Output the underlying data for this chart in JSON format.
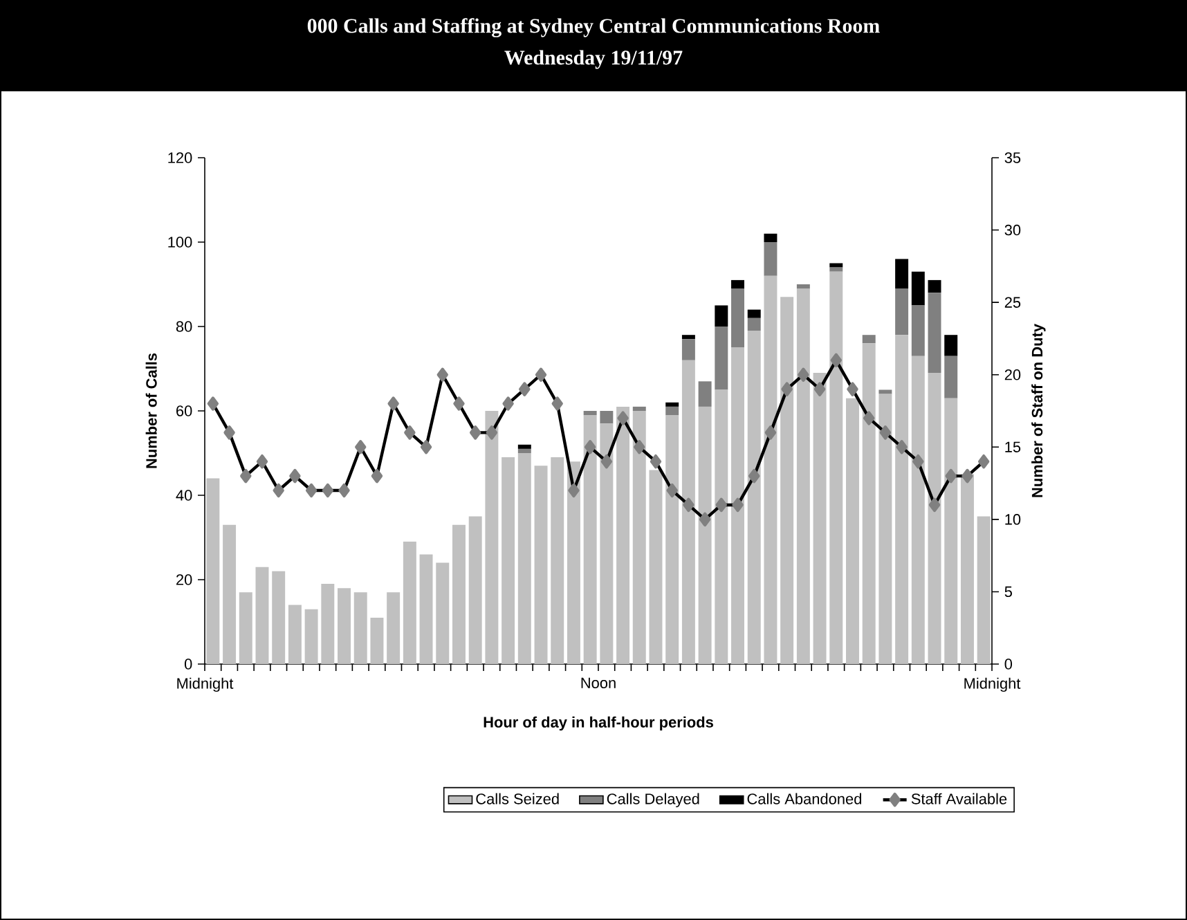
{
  "chart_data": {
    "type": "bar",
    "title": "000 Calls and Staffing at Sydney Central Communications Room",
    "subtitle": "Wednesday 19/11/97",
    "xlabel": "Hour of day in half-hour periods",
    "ylabel": "Number of Calls",
    "y2label": "Number of Staff on Duty",
    "stacked": true,
    "legend": "bottom",
    "marker": "diamond",
    "categories": [
      null,
      null,
      null,
      null,
      null,
      null,
      null,
      null,
      null,
      null,
      null,
      null,
      null,
      null,
      null,
      null,
      null,
      null,
      null,
      null,
      null,
      null,
      null,
      null,
      null,
      null,
      null,
      null,
      null,
      null,
      null,
      null,
      null,
      null,
      null,
      null,
      null,
      null,
      null,
      null,
      null,
      null,
      null,
      null,
      null,
      null,
      null,
      null
    ],
    "annotations": [
      "Midnight",
      "Noon",
      "Midnight"
    ],
    "ylim": [
      0,
      120
    ],
    "yticks": [
      0,
      20,
      40,
      60,
      80,
      100,
      120
    ],
    "y2lim": [
      0,
      35
    ],
    "y2ticks": [
      0,
      5,
      10,
      15,
      20,
      25,
      30,
      35
    ],
    "series": [
      {
        "name": "Calls Seized",
        "color": "#c0c0c0",
        "values": [
          44,
          33,
          17,
          23,
          22,
          14,
          13,
          19,
          18,
          17,
          11,
          17,
          29,
          26,
          24,
          33,
          35,
          60,
          49,
          50,
          47,
          49,
          48,
          59,
          57,
          61,
          60,
          46,
          59,
          72,
          61,
          65,
          75,
          79,
          92,
          87,
          89,
          69,
          93,
          63,
          76,
          64,
          78,
          73,
          69,
          63,
          45,
          35
        ]
      },
      {
        "name": "Calls Delayed",
        "color": "#808080",
        "values": [
          null,
          null,
          null,
          null,
          null,
          null,
          null,
          null,
          null,
          null,
          null,
          null,
          null,
          null,
          null,
          null,
          null,
          null,
          null,
          1,
          null,
          null,
          null,
          1,
          3,
          null,
          1,
          null,
          2,
          5,
          6,
          15,
          14,
          3,
          8,
          null,
          1,
          null,
          1,
          null,
          2,
          1,
          11,
          12,
          19,
          10,
          null,
          null
        ]
      },
      {
        "name": "Calls Abandoned",
        "color": "#000000",
        "values": [
          null,
          null,
          null,
          null,
          null,
          null,
          null,
          null,
          null,
          null,
          null,
          null,
          null,
          null,
          null,
          null,
          null,
          null,
          null,
          1,
          null,
          null,
          null,
          null,
          null,
          null,
          null,
          null,
          1,
          1,
          null,
          5,
          2,
          2,
          2,
          null,
          null,
          null,
          1,
          null,
          null,
          null,
          7,
          8,
          3,
          5,
          null,
          null
        ]
      },
      {
        "name": "Staff Available",
        "type": "line",
        "axis": "y2",
        "color": "#000000",
        "values": [
          18,
          16,
          13,
          14,
          12,
          13,
          12,
          12,
          12,
          15,
          13,
          18,
          16,
          15,
          20,
          18,
          16,
          16,
          18,
          19,
          20,
          18,
          12,
          15,
          14,
          17,
          15,
          14,
          12,
          11,
          10,
          11,
          11,
          13,
          16,
          19,
          20,
          19,
          21,
          19,
          17,
          16,
          15,
          14,
          11,
          13,
          13,
          14
        ]
      }
    ]
  }
}
